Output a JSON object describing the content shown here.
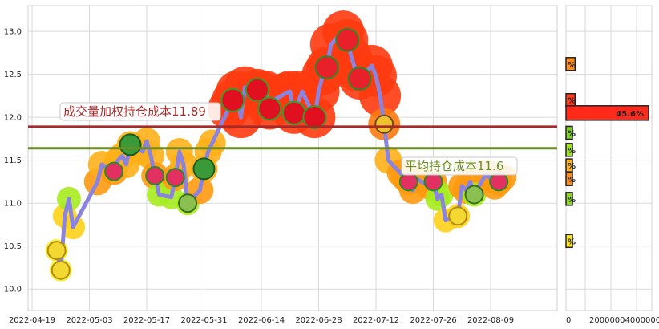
{
  "chart_data": {
    "type": "line",
    "title": "",
    "xlabel": "",
    "ylabel": "",
    "ylim": [
      9.75,
      13.3
    ],
    "grid": true,
    "x_ticks": [
      "2022-04-19",
      "2022-05-03",
      "2022-05-17",
      "2022-05-31",
      "2022-06-14",
      "2022-06-28",
      "2022-07-12",
      "2022-07-26",
      "2022-08-09"
    ],
    "y_ticks": [
      "10.0",
      "10.5",
      "11.0",
      "11.5",
      "12.0",
      "12.5",
      "13.0"
    ],
    "series": [
      {
        "x": [
          "2022-04-25",
          "2022-04-26",
          "2022-04-27",
          "2022-04-28",
          "2022-04-29",
          "2022-05-05",
          "2022-05-06",
          "2022-05-09",
          "2022-05-10",
          "2022-05-11",
          "2022-05-12",
          "2022-05-13",
          "2022-05-16",
          "2022-05-17",
          "2022-05-18",
          "2022-05-19",
          "2022-05-20",
          "2022-05-23",
          "2022-05-24",
          "2022-05-25",
          "2022-05-26",
          "2022-05-27",
          "2022-05-30",
          "2022-05-31",
          "2022-06-01",
          "2022-06-02",
          "2022-06-06",
          "2022-06-07",
          "2022-06-08",
          "2022-06-09",
          "2022-06-10",
          "2022-06-13",
          "2022-06-14",
          "2022-06-15",
          "2022-06-16",
          "2022-06-17",
          "2022-06-20",
          "2022-06-21",
          "2022-06-22",
          "2022-06-23",
          "2022-06-24",
          "2022-06-27",
          "2022-06-28",
          "2022-06-29",
          "2022-06-30",
          "2022-07-01",
          "2022-07-04",
          "2022-07-05",
          "2022-07-06",
          "2022-07-07",
          "2022-07-08",
          "2022-07-11",
          "2022-07-12",
          "2022-07-13",
          "2022-07-14",
          "2022-07-15",
          "2022-07-18",
          "2022-07-19",
          "2022-07-20",
          "2022-07-21",
          "2022-07-22",
          "2022-07-25",
          "2022-07-26",
          "2022-07-27",
          "2022-07-28",
          "2022-07-29",
          "2022-08-01",
          "2022-08-02",
          "2022-08-03",
          "2022-08-04",
          "2022-08-05",
          "2022-08-08",
          "2022-08-09",
          "2022-08-10",
          "2022-08-11",
          "2022-08-12"
        ],
        "values": [
          10.45,
          10.22,
          10.85,
          11.05,
          10.72,
          11.25,
          11.45,
          11.37,
          11.5,
          11.55,
          11.45,
          11.68,
          11.6,
          11.72,
          11.55,
          11.32,
          11.1,
          11.07,
          11.3,
          11.6,
          11.45,
          11.0,
          11.15,
          11.4,
          11.6,
          11.7,
          12.1,
          12.2,
          12.3,
          12.0,
          12.35,
          12.32,
          12.25,
          12.3,
          12.1,
          12.2,
          12.28,
          12.3,
          12.05,
          12.18,
          12.3,
          12.0,
          12.3,
          12.5,
          12.58,
          12.85,
          13.0,
          12.9,
          12.7,
          12.55,
          12.45,
          12.6,
          12.48,
          12.25,
          11.92,
          11.5,
          11.35,
          11.3,
          11.25,
          11.15,
          11.28,
          11.2,
          11.25,
          11.05,
          11.1,
          10.8,
          10.85,
          11.2,
          11.15,
          11.25,
          11.1,
          11.35,
          11.28,
          11.2,
          11.25,
          11.3
        ]
      }
    ],
    "reference_lines": [
      {
        "label": "成交量加权持仓成本11.89",
        "value": 11.89,
        "color": "#a52a2a"
      },
      {
        "label": "平均持仓成本11.6",
        "value": 11.64,
        "color": "#6b8e23"
      }
    ],
    "side_panel": {
      "x_ticks": [
        "0",
        "20000004000000"
      ],
      "bars": [
        {
          "price": 12.62,
          "value": 5,
          "label": "%",
          "color": "#ff8c1a"
        },
        {
          "price": 12.2,
          "value": 5,
          "label": "%",
          "color": "#ff4020"
        },
        {
          "price": 12.05,
          "value": 45.6,
          "label": "45.6%",
          "color": "#ff2a1a"
        },
        {
          "price": 11.82,
          "value": 2,
          "label": "%",
          "color": "#7cd321"
        },
        {
          "price": 11.62,
          "value": 2,
          "label": "%",
          "color": "#9be320"
        },
        {
          "price": 11.44,
          "value": 3,
          "label": "%",
          "color": "#ffb21a"
        },
        {
          "price": 11.28,
          "value": 3,
          "label": "%",
          "color": "#ff8c1a"
        },
        {
          "price": 11.05,
          "value": 2,
          "label": "%",
          "color": "#8bd622"
        },
        {
          "price": 10.56,
          "value": 3,
          "label": "%",
          "color": "#ffe41a"
        }
      ]
    }
  }
}
